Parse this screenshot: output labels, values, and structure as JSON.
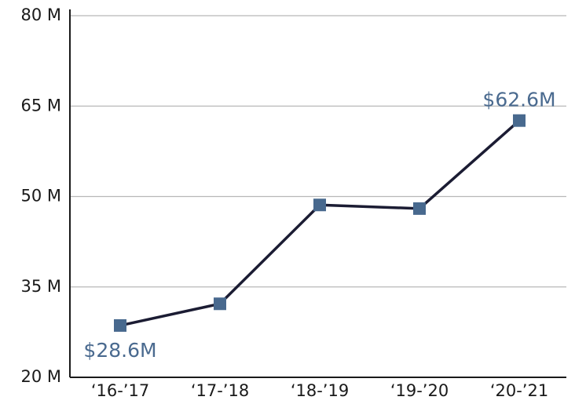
{
  "chart_data": {
    "type": "line",
    "categories": [
      "‘16-’17",
      "‘17-’18",
      "‘18-’19",
      "‘19-’20",
      "‘20-’21"
    ],
    "values": [
      28.6,
      32.2,
      48.6,
      48.0,
      62.6
    ],
    "ylim": [
      20,
      80
    ],
    "yticks": [
      20,
      35,
      50,
      65,
      80
    ],
    "ytick_labels": [
      "20 M",
      "35 M",
      "50 M",
      "65 M",
      "80 M"
    ],
    "data_labels": [
      {
        "index": 0,
        "text": "$28.6M",
        "position": "below"
      },
      {
        "index": 4,
        "text": "$62.6M",
        "position": "above"
      }
    ],
    "grid": true,
    "title": "",
    "xlabel": "",
    "ylabel": "",
    "colors": {
      "line": "#1b1c33",
      "marker": "#48698e",
      "label": "#4a6a8f",
      "grid": "#b8b8b8",
      "axis": "#1a1a1a"
    }
  }
}
